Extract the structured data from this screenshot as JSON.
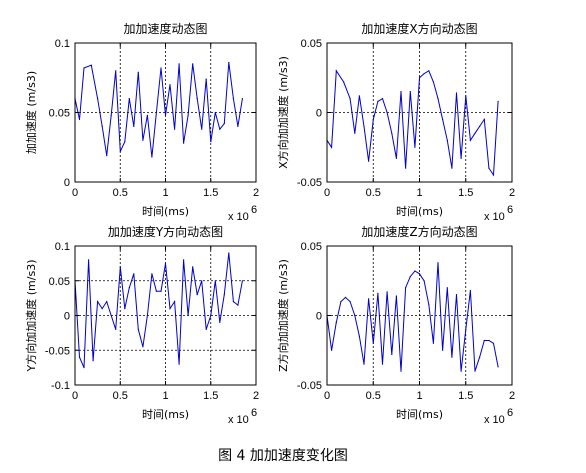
{
  "figure_caption": "图 4  加加速度变化图",
  "chart_data": [
    {
      "type": "line",
      "title": "加加速度动态图",
      "xlabel": "时间(ms)",
      "ylabel": "加加速度 (m/s3)",
      "x_exponent": "x 10",
      "x_exponent_power": "6",
      "xlim": [
        0,
        2
      ],
      "ylim": [
        0,
        0.1
      ],
      "xticks": [
        0,
        0.5,
        1,
        1.5,
        2
      ],
      "xtick_labels": [
        "0",
        "0.5",
        "1",
        "1.5",
        "2"
      ],
      "yticks": [
        0,
        0.05,
        0.1
      ],
      "ytick_labels": [
        "0",
        "0.05",
        "0.1"
      ],
      "grid": "dotted",
      "line_color": "#0000cc",
      "x": [
        0,
        0.05,
        0.1,
        0.18,
        0.25,
        0.3,
        0.35,
        0.4,
        0.45,
        0.5,
        0.55,
        0.6,
        0.65,
        0.7,
        0.75,
        0.8,
        0.85,
        0.9,
        0.95,
        1.0,
        1.05,
        1.1,
        1.15,
        1.2,
        1.25,
        1.3,
        1.35,
        1.4,
        1.45,
        1.5,
        1.55,
        1.6,
        1.65,
        1.7,
        1.75,
        1.8,
        1.85
      ],
      "y": [
        0.06,
        0.045,
        0.082,
        0.084,
        0.06,
        0.04,
        0.019,
        0.048,
        0.08,
        0.022,
        0.029,
        0.06,
        0.04,
        0.079,
        0.03,
        0.048,
        0.018,
        0.05,
        0.082,
        0.048,
        0.07,
        0.038,
        0.085,
        0.028,
        0.048,
        0.085,
        0.06,
        0.038,
        0.074,
        0.029,
        0.05,
        0.038,
        0.042,
        0.086,
        0.06,
        0.04,
        0.06
      ]
    },
    {
      "type": "line",
      "title": "加加速度X方向动态图",
      "xlabel": "时间(ms)",
      "ylabel": "X方向加加速度 (m/s3)",
      "x_exponent": "x 10",
      "x_exponent_power": "6",
      "xlim": [
        0,
        2
      ],
      "ylim": [
        -0.05,
        0.05
      ],
      "xticks": [
        0,
        0.5,
        1,
        1.5,
        2
      ],
      "xtick_labels": [
        "0",
        "0.5",
        "1",
        "1.5",
        "2"
      ],
      "yticks": [
        -0.05,
        0,
        0.05
      ],
      "ytick_labels": [
        "-0.05",
        "0",
        "0.05"
      ],
      "grid": "dotted",
      "line_color": "#0000cc",
      "x": [
        0,
        0.05,
        0.1,
        0.18,
        0.25,
        0.3,
        0.35,
        0.4,
        0.45,
        0.5,
        0.55,
        0.6,
        0.65,
        0.7,
        0.75,
        0.8,
        0.85,
        0.9,
        0.95,
        1.0,
        1.05,
        1.1,
        1.15,
        1.2,
        1.25,
        1.3,
        1.35,
        1.4,
        1.45,
        1.5,
        1.55,
        1.6,
        1.65,
        1.7,
        1.75,
        1.8,
        1.85
      ],
      "y": [
        -0.02,
        -0.025,
        0.03,
        0.022,
        0.01,
        -0.015,
        0.012,
        -0.01,
        -0.035,
        -0.005,
        0.008,
        0.01,
        0.0,
        -0.015,
        -0.033,
        0.015,
        -0.04,
        0.015,
        -0.025,
        0.025,
        0.028,
        0.03,
        0.022,
        0.01,
        -0.005,
        -0.02,
        -0.04,
        0.014,
        -0.033,
        0.012,
        -0.02,
        -0.015,
        -0.01,
        -0.005,
        -0.04,
        -0.045,
        0.008
      ]
    },
    {
      "type": "line",
      "title": "加加速度Y方向动态图",
      "xlabel": "时间(ms)",
      "ylabel": "Y方向加加速度 (m/s3)",
      "x_exponent": "x 10",
      "x_exponent_power": "6",
      "xlim": [
        0,
        2
      ],
      "ylim": [
        -0.1,
        0.1
      ],
      "xticks": [
        0,
        0.5,
        1,
        1.5,
        2
      ],
      "xtick_labels": [
        "0",
        "0.5",
        "1",
        "1.5",
        "2"
      ],
      "yticks": [
        -0.1,
        -0.05,
        0,
        0.05,
        0.1
      ],
      "ytick_labels": [
        "-0.1",
        "-0.05",
        "0",
        "0.05",
        "0.1"
      ],
      "grid": "dotted",
      "line_color": "#0000cc",
      "x": [
        0,
        0.05,
        0.1,
        0.15,
        0.2,
        0.25,
        0.3,
        0.35,
        0.4,
        0.45,
        0.5,
        0.55,
        0.6,
        0.65,
        0.7,
        0.75,
        0.8,
        0.85,
        0.9,
        0.95,
        1.0,
        1.05,
        1.1,
        1.15,
        1.2,
        1.25,
        1.3,
        1.35,
        1.4,
        1.45,
        1.5,
        1.55,
        1.6,
        1.65,
        1.7,
        1.75,
        1.8,
        1.85
      ],
      "y": [
        0.05,
        -0.06,
        -0.075,
        0.08,
        -0.065,
        0.02,
        0.01,
        0.02,
        0.0,
        -0.02,
        0.07,
        0.01,
        0.04,
        0.06,
        -0.02,
        -0.045,
        0.0,
        0.06,
        0.035,
        0.035,
        0.075,
        0.01,
        0.02,
        -0.07,
        0.08,
        0.0,
        0.07,
        0.03,
        0.05,
        -0.02,
        0.0,
        0.05,
        -0.01,
        0.03,
        0.09,
        0.02,
        0.015,
        0.05
      ]
    },
    {
      "type": "line",
      "title": "加加速度Z方向动态图",
      "xlabel": "时间(ms)",
      "ylabel": "Z方向加加速度 (m/s3)",
      "x_exponent": "x 10",
      "x_exponent_power": "6",
      "xlim": [
        0,
        2
      ],
      "ylim": [
        -0.05,
        0.05
      ],
      "xticks": [
        0,
        0.5,
        1,
        1.5,
        2
      ],
      "xtick_labels": [
        "0",
        "0.5",
        "1",
        "1.5",
        "2"
      ],
      "yticks": [
        -0.05,
        0,
        0.05
      ],
      "ytick_labels": [
        "-0.05",
        "0",
        "0.05"
      ],
      "grid": "dotted",
      "line_color": "#0000cc",
      "x": [
        0,
        0.05,
        0.1,
        0.15,
        0.2,
        0.25,
        0.3,
        0.35,
        0.4,
        0.45,
        0.5,
        0.55,
        0.6,
        0.65,
        0.7,
        0.75,
        0.8,
        0.85,
        0.9,
        0.95,
        1.0,
        1.05,
        1.1,
        1.15,
        1.2,
        1.25,
        1.3,
        1.35,
        1.4,
        1.45,
        1.5,
        1.55,
        1.6,
        1.65,
        1.7,
        1.75,
        1.8,
        1.85
      ],
      "y": [
        0.0,
        -0.025,
        -0.005,
        0.01,
        0.013,
        0.01,
        0.0,
        -0.015,
        -0.035,
        0.012,
        -0.02,
        0.016,
        -0.035,
        0.017,
        -0.028,
        0.014,
        -0.04,
        0.02,
        0.028,
        0.032,
        0.03,
        0.025,
        0.008,
        -0.02,
        0.038,
        -0.025,
        0.02,
        -0.03,
        0.015,
        -0.04,
        -0.01,
        0.018,
        -0.04,
        -0.03,
        -0.018,
        -0.018,
        -0.02,
        -0.037
      ]
    }
  ]
}
